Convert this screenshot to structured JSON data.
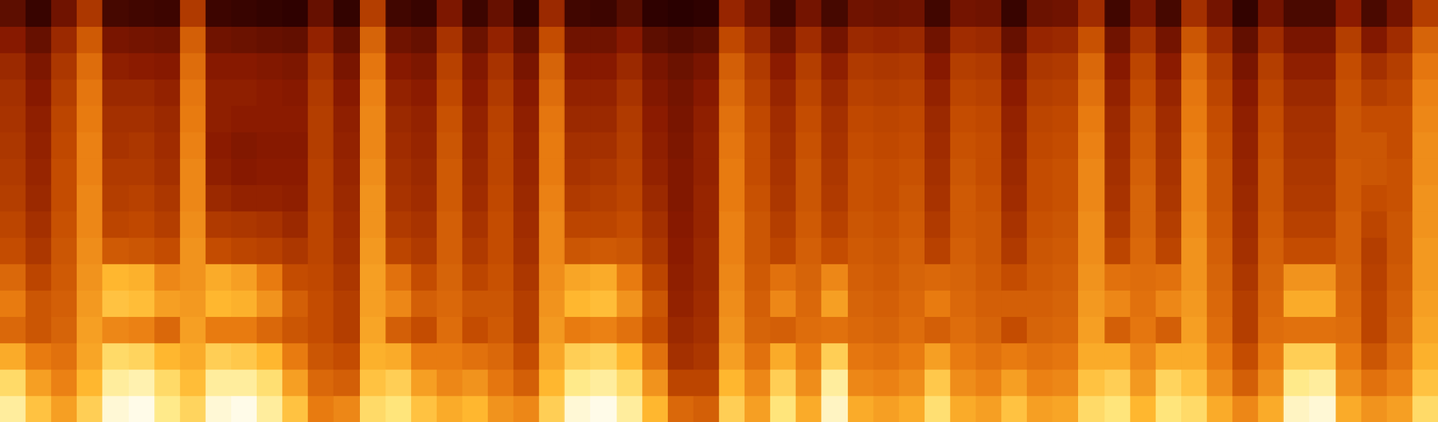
{
  "chart_data": {
    "type": "heatmap",
    "tick_labels": false,
    "grid": false,
    "cells": [
      [
        90,
        86,
        78,
        66,
        70,
        66,
        60,
        58,
        56,
        55,
        54,
        53,
        52,
        50,
        45,
        36
      ],
      [
        82,
        76,
        70,
        62,
        62,
        58,
        54,
        52,
        50,
        49,
        48,
        47,
        45,
        43,
        38,
        28
      ],
      [
        76,
        71,
        68,
        65,
        64,
        63,
        62,
        61,
        60,
        60,
        59,
        58,
        56,
        54,
        50,
        40
      ],
      [
        84,
        80,
        77,
        76,
        75,
        74,
        73,
        72,
        72,
        71,
        71,
        70,
        69,
        67,
        63,
        54
      ],
      [
        93,
        90,
        86,
        72,
        82,
        80,
        63,
        58,
        56,
        55,
        53,
        52,
        50,
        47,
        42,
        31
      ],
      [
        94,
        91,
        85,
        71,
        81,
        79,
        62,
        59,
        57,
        55,
        54,
        52,
        50,
        46,
        41,
        30
      ],
      [
        89,
        86,
        80,
        66,
        76,
        72,
        60,
        56,
        54,
        52,
        51,
        50,
        48,
        45,
        40,
        29
      ],
      [
        85,
        81,
        78,
        76,
        75,
        74,
        74,
        73,
        72,
        72,
        71,
        70,
        69,
        67,
        64,
        55
      ],
      [
        93,
        90,
        84,
        70,
        80,
        78,
        60,
        55,
        50,
        47,
        46,
        47,
        47,
        45,
        40,
        29
      ],
      [
        94,
        90,
        83,
        70,
        79,
        76,
        58,
        54,
        48,
        45,
        44,
        46,
        47,
        45,
        39,
        28
      ],
      [
        90,
        87,
        80,
        66,
        74,
        70,
        57,
        53,
        48,
        46,
        45,
        46,
        46,
        44,
        38,
        27
      ],
      [
        82,
        76,
        70,
        62,
        64,
        60,
        54,
        50,
        47,
        46,
        45,
        46,
        45,
        43,
        37,
        26
      ],
      [
        70,
        66,
        62,
        60,
        60,
        59,
        58,
        58,
        57,
        57,
        56,
        56,
        55,
        53,
        48,
        38
      ],
      [
        72,
        64,
        60,
        56,
        56,
        54,
        52,
        51,
        50,
        49,
        48,
        47,
        45,
        42,
        37,
        27
      ],
      [
        86,
        82,
        79,
        77,
        76,
        76,
        75,
        74,
        74,
        73,
        72,
        72,
        71,
        69,
        65,
        56
      ],
      [
        88,
        84,
        78,
        64,
        72,
        68,
        58,
        55,
        53,
        52,
        51,
        50,
        48,
        45,
        40,
        30
      ],
      [
        82,
        76,
        70,
        60,
        64,
        60,
        55,
        53,
        51,
        50,
        49,
        48,
        46,
        43,
        38,
        28
      ],
      [
        78,
        72,
        70,
        67,
        66,
        65,
        64,
        64,
        63,
        63,
        62,
        61,
        59,
        57,
        53,
        43
      ],
      [
        80,
        74,
        68,
        60,
        62,
        58,
        55,
        53,
        51,
        50,
        49,
        48,
        46,
        44,
        39,
        29
      ],
      [
        74,
        69,
        66,
        63,
        62,
        61,
        60,
        60,
        59,
        58,
        58,
        57,
        55,
        53,
        48,
        38
      ],
      [
        72,
        64,
        60,
        56,
        56,
        54,
        52,
        51,
        50,
        49,
        48,
        47,
        45,
        42,
        37,
        27
      ],
      [
        84,
        80,
        77,
        75,
        74,
        73,
        72,
        72,
        71,
        70,
        70,
        69,
        67,
        65,
        60,
        50
      ],
      [
        93,
        89,
        84,
        70,
        80,
        77,
        62,
        58,
        55,
        53,
        52,
        50,
        48,
        45,
        40,
        30
      ],
      [
        94,
        90,
        85,
        71,
        81,
        78,
        63,
        58,
        56,
        54,
        52,
        50,
        48,
        45,
        40,
        29
      ],
      [
        90,
        86,
        80,
        68,
        74,
        70,
        62,
        60,
        58,
        57,
        56,
        55,
        53,
        50,
        45,
        35
      ],
      [
        80,
        74,
        68,
        60,
        62,
        58,
        54,
        52,
        50,
        48,
        47,
        46,
        44,
        42,
        36,
        26
      ],
      [
        66,
        58,
        52,
        50,
        48,
        47,
        46,
        45,
        44,
        44,
        43,
        42,
        41,
        39,
        34,
        25
      ],
      [
        64,
        58,
        54,
        52,
        51,
        50,
        50,
        49,
        49,
        48,
        48,
        47,
        45,
        42,
        36,
        26
      ],
      [
        84,
        80,
        76,
        74,
        73,
        72,
        71,
        71,
        70,
        70,
        69,
        68,
        66,
        64,
        59,
        49
      ],
      [
        76,
        72,
        68,
        65,
        64,
        63,
        62,
        62,
        61,
        60,
        60,
        59,
        57,
        55,
        50,
        40
      ],
      [
        88,
        84,
        78,
        64,
        72,
        68,
        58,
        56,
        54,
        53,
        52,
        51,
        49,
        46,
        40,
        30
      ],
      [
        78,
        73,
        70,
        67,
        66,
        65,
        64,
        63,
        62,
        62,
        61,
        60,
        58,
        56,
        51,
        41
      ],
      [
        92,
        90,
        84,
        68,
        76,
        72,
        60,
        57,
        55,
        54,
        53,
        52,
        50,
        47,
        41,
        31
      ],
      [
        78,
        72,
        69,
        66,
        65,
        64,
        63,
        62,
        61,
        61,
        60,
        59,
        57,
        55,
        50,
        40
      ],
      [
        76,
        71,
        68,
        65,
        64,
        63,
        62,
        61,
        60,
        60,
        59,
        58,
        56,
        54,
        49,
        39
      ],
      [
        78,
        73,
        70,
        67,
        66,
        65,
        64,
        63,
        62,
        61,
        60,
        59,
        57,
        55,
        50,
        40
      ],
      [
        87,
        83,
        76,
        64,
        70,
        66,
        57,
        55,
        53,
        52,
        51,
        50,
        48,
        45,
        40,
        30
      ],
      [
        78,
        73,
        70,
        67,
        66,
        65,
        64,
        63,
        63,
        62,
        61,
        60,
        58,
        56,
        51,
        41
      ],
      [
        76,
        71,
        68,
        65,
        64,
        63,
        62,
        62,
        61,
        60,
        60,
        59,
        57,
        55,
        50,
        40
      ],
      [
        82,
        76,
        70,
        60,
        64,
        60,
        55,
        53,
        51,
        50,
        49,
        48,
        46,
        43,
        38,
        28
      ],
      [
        76,
        71,
        68,
        65,
        64,
        63,
        62,
        61,
        60,
        60,
        59,
        58,
        56,
        54,
        49,
        39
      ],
      [
        77,
        72,
        69,
        66,
        65,
        64,
        63,
        62,
        61,
        61,
        60,
        59,
        57,
        55,
        50,
        40
      ],
      [
        86,
        82,
        78,
        76,
        75,
        74,
        73,
        73,
        72,
        72,
        71,
        70,
        68,
        66,
        61,
        51
      ],
      [
        88,
        84,
        78,
        64,
        72,
        68,
        58,
        55,
        53,
        52,
        51,
        50,
        48,
        45,
        40,
        30
      ],
      [
        80,
        75,
        72,
        69,
        68,
        67,
        66,
        65,
        65,
        64,
        63,
        62,
        60,
        58,
        53,
        43
      ],
      [
        88,
        85,
        78,
        64,
        72,
        68,
        58,
        56,
        54,
        53,
        52,
        51,
        49,
        46,
        41,
        31
      ],
      [
        86,
        82,
        78,
        76,
        75,
        74,
        74,
        73,
        72,
        72,
        71,
        70,
        69,
        67,
        62,
        52
      ],
      [
        78,
        73,
        70,
        67,
        66,
        65,
        64,
        63,
        62,
        62,
        61,
        60,
        58,
        56,
        51,
        41
      ],
      [
        72,
        64,
        60,
        56,
        56,
        54,
        52,
        51,
        50,
        49,
        48,
        47,
        45,
        42,
        37,
        27
      ],
      [
        78,
        73,
        70,
        67,
        66,
        65,
        64,
        63,
        62,
        62,
        61,
        60,
        58,
        56,
        51,
        41
      ],
      [
        92,
        89,
        84,
        68,
        78,
        74,
        60,
        57,
        55,
        54,
        53,
        52,
        50,
        47,
        42,
        32
      ],
      [
        93,
        90,
        84,
        68,
        78,
        74,
        60,
        57,
        55,
        54,
        53,
        52,
        50,
        47,
        42,
        32
      ],
      [
        78,
        73,
        70,
        67,
        66,
        65,
        64,
        64,
        63,
        63,
        62,
        62,
        61,
        60,
        56,
        46
      ],
      [
        74,
        68,
        62,
        58,
        58,
        57,
        56,
        58,
        60,
        62,
        62,
        60,
        56,
        52,
        44,
        32
      ],
      [
        76,
        71,
        68,
        65,
        64,
        63,
        62,
        62,
        61,
        61,
        60,
        60,
        58,
        56,
        51,
        41
      ],
      [
        86,
        82,
        79,
        77,
        76,
        75,
        75,
        74,
        74,
        73,
        73,
        72,
        71,
        69,
        65,
        56
      ]
    ]
  }
}
